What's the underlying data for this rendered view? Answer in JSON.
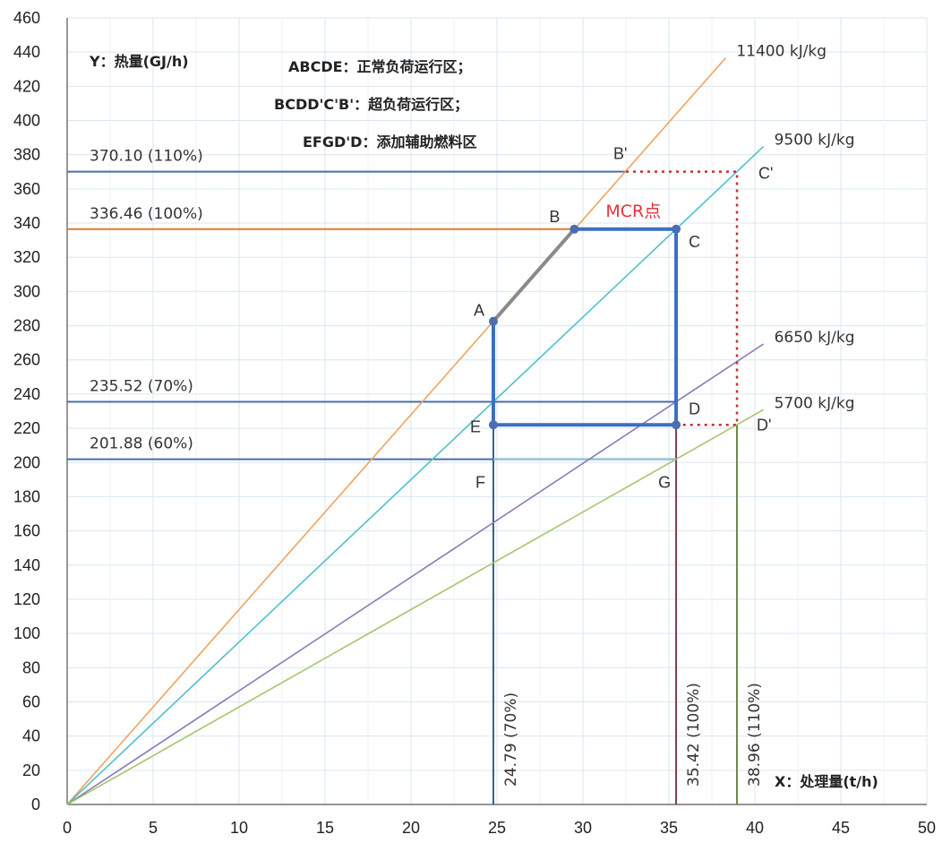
{
  "chart_data": {
    "type": "line",
    "xlim": [
      0,
      50
    ],
    "ylim": [
      0,
      460
    ],
    "x_ticks": [
      0,
      5,
      10,
      15,
      20,
      25,
      30,
      35,
      40,
      45,
      50
    ],
    "y_ticks": [
      0,
      20,
      40,
      60,
      80,
      100,
      120,
      140,
      160,
      180,
      200,
      220,
      240,
      260,
      280,
      300,
      320,
      340,
      360,
      380,
      400,
      420,
      440,
      460
    ],
    "grid": true,
    "ylabel": "Y：热量(GJ/h)",
    "xlabel": "X：处理量(t/h)",
    "legend_notes": [
      "ABCDE：正常负荷运行区；",
      "BCDD'C'B'：超负荷运行区；",
      "EFGD'D：添加辅助燃料区"
    ],
    "series": [
      {
        "name": "11400 kJ/kg",
        "color": "#f0a35e",
        "x": [
          0,
          38.3
        ],
        "y": [
          0,
          436.6
        ]
      },
      {
        "name": "9500 kJ/kg",
        "color": "#4fc1c8",
        "x": [
          0,
          40.5
        ],
        "y": [
          0,
          384.8
        ]
      },
      {
        "name": "6650 kJ/kg",
        "color": "#8a7ab8",
        "x": [
          0,
          40.5
        ],
        "y": [
          0,
          269.3
        ]
      },
      {
        "name": "5700 kJ/kg",
        "color": "#a8c46e",
        "x": [
          0,
          40.5
        ],
        "y": [
          0,
          230.9
        ]
      }
    ],
    "reference_lines": [
      {
        "label": "370.10 (110%)",
        "axis": "y",
        "value": 370.1,
        "to_x": 32.5,
        "color": "#4a6ea8"
      },
      {
        "label": "336.46 (100%)",
        "axis": "y",
        "value": 336.46,
        "to_x": 29.5,
        "color": "#e07b2a"
      },
      {
        "label": "235.52 (70%)",
        "axis": "y",
        "value": 235.52,
        "to_x": 35.42,
        "color": "#4a6ea8"
      },
      {
        "label": "201.88 (60%)",
        "axis": "y",
        "value": 201.88,
        "to_x": 35.42,
        "color": "#4a6ea8"
      },
      {
        "label": "24.79 (70%)",
        "axis": "x",
        "value": 24.79,
        "from_y": 0,
        "to_y": 222,
        "color": "#3a5f8a"
      },
      {
        "label": "35.42 (100%)",
        "axis": "x",
        "value": 35.42,
        "from_y": 0,
        "to_y": 222,
        "color": "#7a3a5a"
      },
      {
        "label": "38.96 (110%)",
        "axis": "x",
        "value": 38.96,
        "from_y": 0,
        "to_y": 222,
        "color": "#6a8a3a"
      }
    ],
    "points": [
      {
        "name": "A",
        "x": 24.79,
        "y": 282.6
      },
      {
        "name": "B",
        "x": 29.5,
        "y": 336.46
      },
      {
        "name": "B'",
        "x": 32.5,
        "y": 370.1
      },
      {
        "name": "C",
        "x": 35.42,
        "y": 336.46
      },
      {
        "name": "C'",
        "x": 38.96,
        "y": 370.1
      },
      {
        "name": "D",
        "x": 35.42,
        "y": 222
      },
      {
        "name": "D'",
        "x": 38.96,
        "y": 222
      },
      {
        "name": "E",
        "x": 24.79,
        "y": 222
      },
      {
        "name": "F",
        "x": 24.79,
        "y": 201.88
      },
      {
        "name": "G",
        "x": 35.42,
        "y": 201.88
      }
    ],
    "annotation": "MCR点",
    "annotation_color": "#e8313a",
    "normal_region_color": "#3a6fc4",
    "ab_segment_color": "#8a8a8a",
    "overload_border_color": "#c0303a"
  }
}
